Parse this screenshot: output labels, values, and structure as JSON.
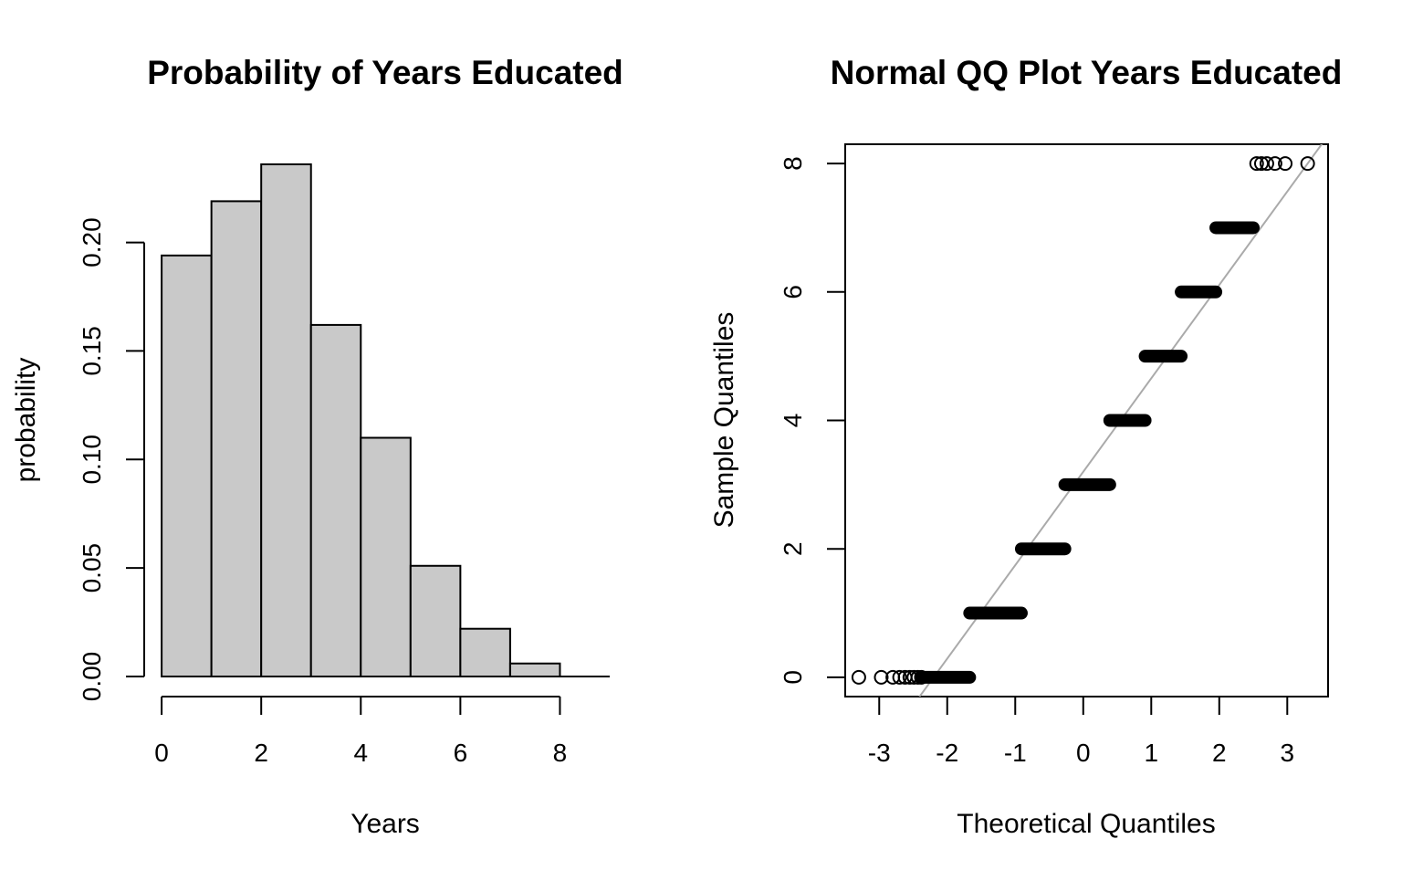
{
  "chart_data": [
    {
      "type": "bar",
      "title": "Probability of Years Educated",
      "xlabel": "Years",
      "ylabel": "probability",
      "bins": [
        {
          "from": 0,
          "to": 1,
          "value": 0.194
        },
        {
          "from": 1,
          "to": 2,
          "value": 0.219
        },
        {
          "from": 2,
          "to": 3,
          "value": 0.236
        },
        {
          "from": 3,
          "to": 4,
          "value": 0.162
        },
        {
          "from": 4,
          "to": 5,
          "value": 0.11
        },
        {
          "from": 5,
          "to": 6,
          "value": 0.051
        },
        {
          "from": 6,
          "to": 7,
          "value": 0.022
        },
        {
          "from": 7,
          "to": 8,
          "value": 0.006
        }
      ],
      "xlim": [
        -0.35,
        9
      ],
      "ylim": [
        0,
        0.236
      ],
      "x_ticks": [
        {
          "value": 0,
          "label": "0"
        },
        {
          "value": 2,
          "label": "2"
        },
        {
          "value": 4,
          "label": "4"
        },
        {
          "value": 6,
          "label": "6"
        },
        {
          "value": 8,
          "label": "8"
        }
      ],
      "y_ticks": [
        {
          "value": 0,
          "label": "0.00"
        },
        {
          "value": 0.05,
          "label": "0.05"
        },
        {
          "value": 0.1,
          "label": "0.10"
        },
        {
          "value": 0.15,
          "label": "0.15"
        },
        {
          "value": 0.2,
          "label": "0.20"
        }
      ],
      "bar_color": "#c9c9c9",
      "grid": false
    },
    {
      "type": "scatter",
      "title": "Normal QQ Plot Years Educated",
      "xlabel": "Theoretical Quantiles",
      "ylabel": "Sample Quantiles",
      "xlim": [
        -3.5,
        3.6
      ],
      "ylim": [
        -0.3,
        8.3
      ],
      "x_ticks": [
        {
          "value": -3,
          "label": "-3"
        },
        {
          "value": -2,
          "label": "-2"
        },
        {
          "value": -1,
          "label": "-1"
        },
        {
          "value": 0,
          "label": "0"
        },
        {
          "value": 1,
          "label": "1"
        },
        {
          "value": 2,
          "label": "2"
        },
        {
          "value": 3,
          "label": "3"
        }
      ],
      "y_ticks": [
        {
          "value": 0,
          "label": "0"
        },
        {
          "value": 2,
          "label": "2"
        },
        {
          "value": 4,
          "label": "4"
        },
        {
          "value": 6,
          "label": "6"
        },
        {
          "value": 8,
          "label": "8"
        }
      ],
      "points": [
        {
          "x": -3.3,
          "y": 0
        },
        {
          "x": -2.97,
          "y": 0
        },
        {
          "x": -2.8,
          "y": 0
        },
        {
          "x": -2.7,
          "y": 0
        },
        {
          "x": -2.62,
          "y": 0
        },
        {
          "x": -2.55,
          "y": 0
        },
        {
          "x": -2.49,
          "y": 0
        },
        {
          "x": -2.43,
          "y": 0
        },
        {
          "x": -2.38,
          "y": 0
        },
        {
          "x": 2.55,
          "y": 8
        },
        {
          "x": 2.62,
          "y": 8
        },
        {
          "x": 2.7,
          "y": 8
        },
        {
          "x": 2.82,
          "y": 8
        },
        {
          "x": 2.97,
          "y": 8
        },
        {
          "x": 3.3,
          "y": 8
        }
      ],
      "runs": [
        {
          "y": 0,
          "x_from": -2.38,
          "x_to": -1.67
        },
        {
          "y": 1,
          "x_from": -1.67,
          "x_to": -0.91
        },
        {
          "y": 2,
          "x_from": -0.91,
          "x_to": -0.27
        },
        {
          "y": 3,
          "x_from": -0.27,
          "x_to": 0.39
        },
        {
          "y": 4,
          "x_from": 0.39,
          "x_to": 0.91
        },
        {
          "y": 5,
          "x_from": 0.91,
          "x_to": 1.44
        },
        {
          "y": 6,
          "x_from": 1.44,
          "x_to": 1.95
        },
        {
          "y": 7,
          "x_from": 1.95,
          "x_to": 2.5
        }
      ],
      "reference_line": {
        "x1": -2.2,
        "y1": 0,
        "x2": 3.3,
        "y2": 8
      },
      "line_color": "#aaaaaa",
      "grid": false
    }
  ]
}
